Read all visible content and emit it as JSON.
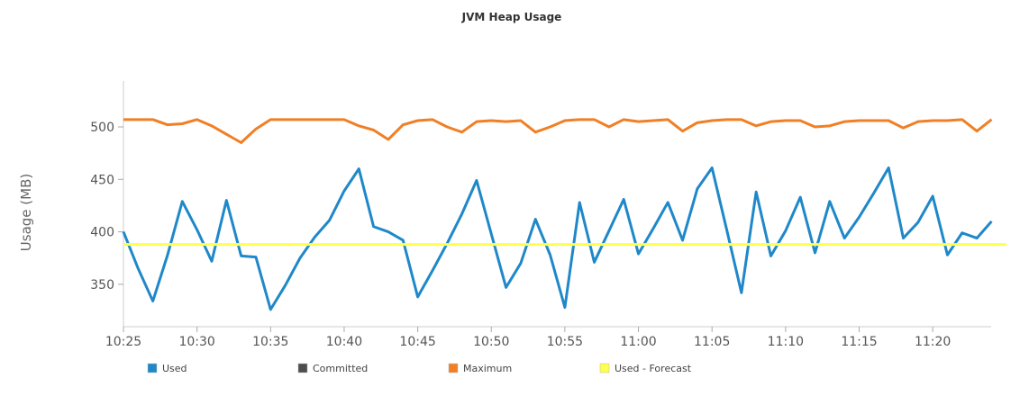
{
  "chart_data": {
    "type": "line",
    "title": "JVM Heap Usage",
    "xlabel": "",
    "ylabel": "Usage (MB)",
    "ylim": [
      310,
      544
    ],
    "yticks": [
      350,
      400,
      450,
      500
    ],
    "xtick_labels": [
      "10:25",
      "10:30",
      "10:35",
      "10:40",
      "10:45",
      "10:50",
      "10:55",
      "11:00",
      "11:05",
      "11:10",
      "11:15",
      "11:20"
    ],
    "x_start": "10:25",
    "x_step_minutes": 1,
    "legend_position": "bottom",
    "grid": false,
    "series": [
      {
        "name": "Used",
        "color": "#1f88c9",
        "values": [
          400,
          365,
          334,
          378,
          429,
          402,
          372,
          430,
          377,
          376,
          326,
          349,
          375,
          395,
          411,
          439,
          460,
          405,
          400,
          392,
          338,
          363,
          389,
          417,
          449,
          398,
          347,
          370,
          412,
          378,
          328,
          428,
          371,
          401,
          431,
          379,
          403,
          428,
          392,
          441,
          461,
          402,
          342,
          438,
          377,
          401,
          433,
          380,
          429,
          394,
          414,
          437,
          461,
          394,
          409,
          434,
          378,
          399,
          394,
          410
        ]
      },
      {
        "name": "Committed",
        "color": "#4d4d4d",
        "values": []
      },
      {
        "name": "Maximum",
        "color": "#f07f25",
        "values": [
          507,
          507,
          507,
          502,
          503,
          507,
          501,
          493,
          485,
          498,
          507,
          507,
          507,
          507,
          507,
          507,
          501,
          497,
          488,
          502,
          506,
          507,
          500,
          495,
          505,
          506,
          505,
          506,
          495,
          500,
          506,
          507,
          507,
          500,
          507,
          505,
          506,
          507,
          496,
          504,
          506,
          507,
          507,
          501,
          505,
          506,
          506,
          500,
          501,
          505,
          506,
          506,
          506,
          499,
          505,
          506,
          506,
          507,
          496,
          507
        ]
      },
      {
        "name": "Used - Forecast",
        "color": "#ffff4d",
        "values": [
          388,
          388
        ]
      }
    ]
  }
}
